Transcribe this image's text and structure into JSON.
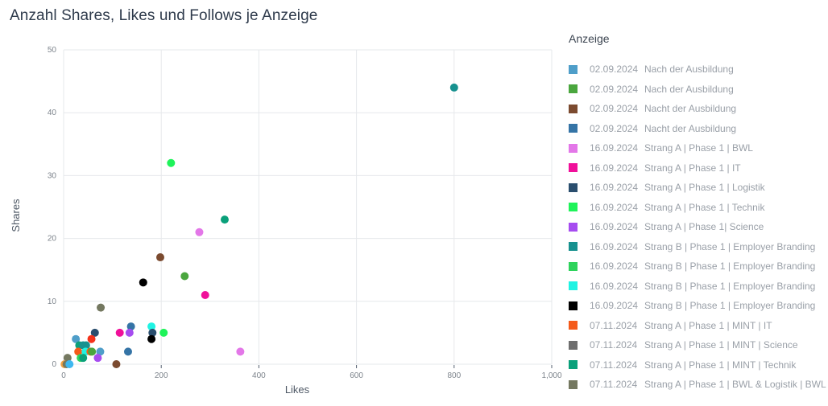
{
  "title": "Anzahl Shares, Likes und Follows je Anzeige",
  "legend": {
    "title": "Anzeige",
    "items": [
      {
        "date": "02.09.2024",
        "label": "Nach der Ausbildung",
        "color": "#4f9ec9"
      },
      {
        "date": "02.09.2024",
        "label": "Nach der Ausbildung",
        "color": "#4aa63e"
      },
      {
        "date": "02.09.2024",
        "label": "Nacht der Ausbildung",
        "color": "#7b4a2f"
      },
      {
        "date": "02.09.2024",
        "label": "Nacht der Ausbildung",
        "color": "#3574a6"
      },
      {
        "date": "16.09.2024",
        "label": "Strang A | Phase 1 | BWL",
        "color": "#e377e8"
      },
      {
        "date": "16.09.2024",
        "label": "Strang A | Phase 1 | IT",
        "color": "#f0109a"
      },
      {
        "date": "16.09.2024",
        "label": "Strang A | Phase 1 | Logistik",
        "color": "#2a4e6e"
      },
      {
        "date": "16.09.2024",
        "label": "Strang A | Phase 1 | Technik",
        "color": "#1ff35a"
      },
      {
        "date": "16.09.2024",
        "label": "Strang A | Phase 1| Science",
        "color": "#a64cf0"
      },
      {
        "date": "16.09.2024",
        "label": "Strang B | Phase 1 | Employer Branding",
        "color": "#17918f"
      },
      {
        "date": "16.09.2024",
        "label": "Strang B | Phase 1 | Employer Branding",
        "color": "#2ed35c"
      },
      {
        "date": "16.09.2024",
        "label": "Strang B | Phase 1 | Employer Branding",
        "color": "#1ff3e3"
      },
      {
        "date": "16.09.2024",
        "label": "Strang B | Phase 1 | Employer Branding",
        "color": "#000000"
      },
      {
        "date": "07.11.2024",
        "label": "Strang A | Phase 1 | MINT | IT",
        "color": "#f45a1a"
      },
      {
        "date": "07.11.2024",
        "label": "Strang A | Phase 1 | MINT | Science",
        "color": "#6e6e6e"
      },
      {
        "date": "07.11.2024",
        "label": "Strang A | Phase 1 | MINT | Technik",
        "color": "#0aa07a"
      },
      {
        "date": "07.11.2024",
        "label": "Strang A | Phase 1 | BWL & Logistik | BWL",
        "color": "#747860"
      }
    ]
  },
  "chart_data": {
    "type": "scatter",
    "title": "Anzahl Shares, Likes und Follows je Anzeige",
    "xlabel": "Likes",
    "ylabel": "Shares",
    "xlim": [
      0,
      1000
    ],
    "ylim": [
      0,
      50
    ],
    "xticks": [
      "0",
      "200",
      "400",
      "600",
      "800",
      "1,000"
    ],
    "yticks": [
      "0",
      "10",
      "20",
      "30",
      "40",
      "50"
    ],
    "grid": true,
    "legend_position": "right",
    "legend_title": "Anzeige",
    "points": [
      {
        "x": 800,
        "y": 44,
        "color": "#17918f",
        "series": "16.09.2024 Strang B | Phase 1 | Employer Branding"
      },
      {
        "x": 220,
        "y": 32,
        "color": "#1ff35a",
        "series": "16.09.2024 Strang A | Phase 1 | Technik"
      },
      {
        "x": 330,
        "y": 23,
        "color": "#0aa07a",
        "series": "07.11.2024 Strang A | Phase 1 | MINT | Technik"
      },
      {
        "x": 278,
        "y": 21,
        "color": "#e377e8",
        "series": "16.09.2024 Strang A | Phase 1 | BWL"
      },
      {
        "x": 198,
        "y": 17,
        "color": "#7b4a2f",
        "series": "02.09.2024 Nacht der Ausbildung"
      },
      {
        "x": 248,
        "y": 14,
        "color": "#4aa63e",
        "series": "02.09.2024 Nach der Ausbildung"
      },
      {
        "x": 163,
        "y": 13,
        "color": "#000000",
        "series": "16.09.2024 Strang B | Phase 1 | Employer Branding"
      },
      {
        "x": 290,
        "y": 11,
        "color": "#f0109a",
        "series": "16.09.2024 Strang A | Phase 1 | IT"
      },
      {
        "x": 76,
        "y": 9,
        "color": "#747860",
        "series": "07.11.2024 Strang A | Phase 1 | BWL & Logistik | BWL"
      },
      {
        "x": 180,
        "y": 6,
        "color": "#1ff3e3",
        "series": "16.09.2024 Strang B | Phase 1 | Employer Branding"
      },
      {
        "x": 138,
        "y": 6,
        "color": "#3574a6",
        "series": "02.09.2024 Nacht der Ausbildung"
      },
      {
        "x": 64,
        "y": 5,
        "color": "#2a4e6e",
        "series": "16.09.2024 Strang A | Phase 1 | Logistik"
      },
      {
        "x": 182,
        "y": 5,
        "color": "#2a4e6e",
        "series": "16.09.2024 Strang A | Phase 1 | Logistik"
      },
      {
        "x": 115,
        "y": 5,
        "color": "#f0109a",
        "series": "16.09.2024 Strang A | Phase 1 | IT"
      },
      {
        "x": 135,
        "y": 5,
        "color": "#a64cf0",
        "series": "16.09.2024 Strang A | Phase 1| Science"
      },
      {
        "x": 205,
        "y": 5,
        "color": "#1ff35a",
        "series": "16.09.2024 Strang A | Phase 1 | Technik"
      },
      {
        "x": 180,
        "y": 4,
        "color": "#000000",
        "series": "16.09.2024 Strang B | Phase 1 | Employer Branding"
      },
      {
        "x": 57,
        "y": 4,
        "color": "#f4321a",
        "series": "07.11.2024 Strang A | Phase 1 | MINT | IT"
      },
      {
        "x": 25,
        "y": 4,
        "color": "#4f9ec9",
        "series": "02.09.2024 Nach der Ausbildung"
      },
      {
        "x": 32,
        "y": 3,
        "color": "#0aa07a",
        "series": "07.11.2024 Strang A | Phase 1 | MINT | Technik"
      },
      {
        "x": 40,
        "y": 3,
        "color": "#17918f",
        "series": "16.09.2024 Strang B | Phase 1 | Employer Branding"
      },
      {
        "x": 46,
        "y": 3,
        "color": "#17918f",
        "series": "16.09.2024 Strang B | Phase 1 | Employer Branding"
      },
      {
        "x": 30,
        "y": 2,
        "color": "#f45a1a",
        "series": "07.11.2024 Strang A | Phase 1 | MINT | IT"
      },
      {
        "x": 45,
        "y": 2,
        "color": "#1ff3e3",
        "series": "16.09.2024 Strang B | Phase 1 | Employer Branding"
      },
      {
        "x": 55,
        "y": 2,
        "color": "#f45a1a",
        "series": "07.11.2024 Strang A | Phase 1 | MINT | IT"
      },
      {
        "x": 58,
        "y": 2,
        "color": "#4aa63e",
        "series": "02.09.2024 Nach der Ausbildung"
      },
      {
        "x": 75,
        "y": 2,
        "color": "#4f9ec9",
        "series": "02.09.2024 Nach der Ausbildung"
      },
      {
        "x": 132,
        "y": 2,
        "color": "#3574a6",
        "series": "02.09.2024 Nacht der Ausbildung"
      },
      {
        "x": 362,
        "y": 2,
        "color": "#e377e8",
        "series": "16.09.2024 Strang A | Phase 1 | BWL"
      },
      {
        "x": 35,
        "y": 1,
        "color": "#2ed35c",
        "series": "16.09.2024 Strang B | Phase 1 | Employer Branding"
      },
      {
        "x": 40,
        "y": 1,
        "color": "#0aa07a",
        "series": "07.11.2024 Strang A | Phase 1 | MINT | Technik"
      },
      {
        "x": 70,
        "y": 1,
        "color": "#a64cf0",
        "series": "16.09.2024 Strang A | Phase 1| Science"
      },
      {
        "x": 8,
        "y": 1,
        "color": "#747860",
        "series": "07.11.2024 Strang A | Phase 1 | BWL & Logistik | BWL"
      },
      {
        "x": 2,
        "y": 0,
        "color": "#f0a040",
        "series": ""
      },
      {
        "x": 6,
        "y": 0,
        "color": "#747860",
        "series": "07.11.2024 Strang A | Phase 1 | BWL & Logistik | BWL"
      },
      {
        "x": 12,
        "y": 0,
        "color": "#3fb8f0",
        "series": ""
      },
      {
        "x": 108,
        "y": 0,
        "color": "#7b4a2f",
        "series": "02.09.2024 Nacht der Ausbildung"
      }
    ]
  }
}
